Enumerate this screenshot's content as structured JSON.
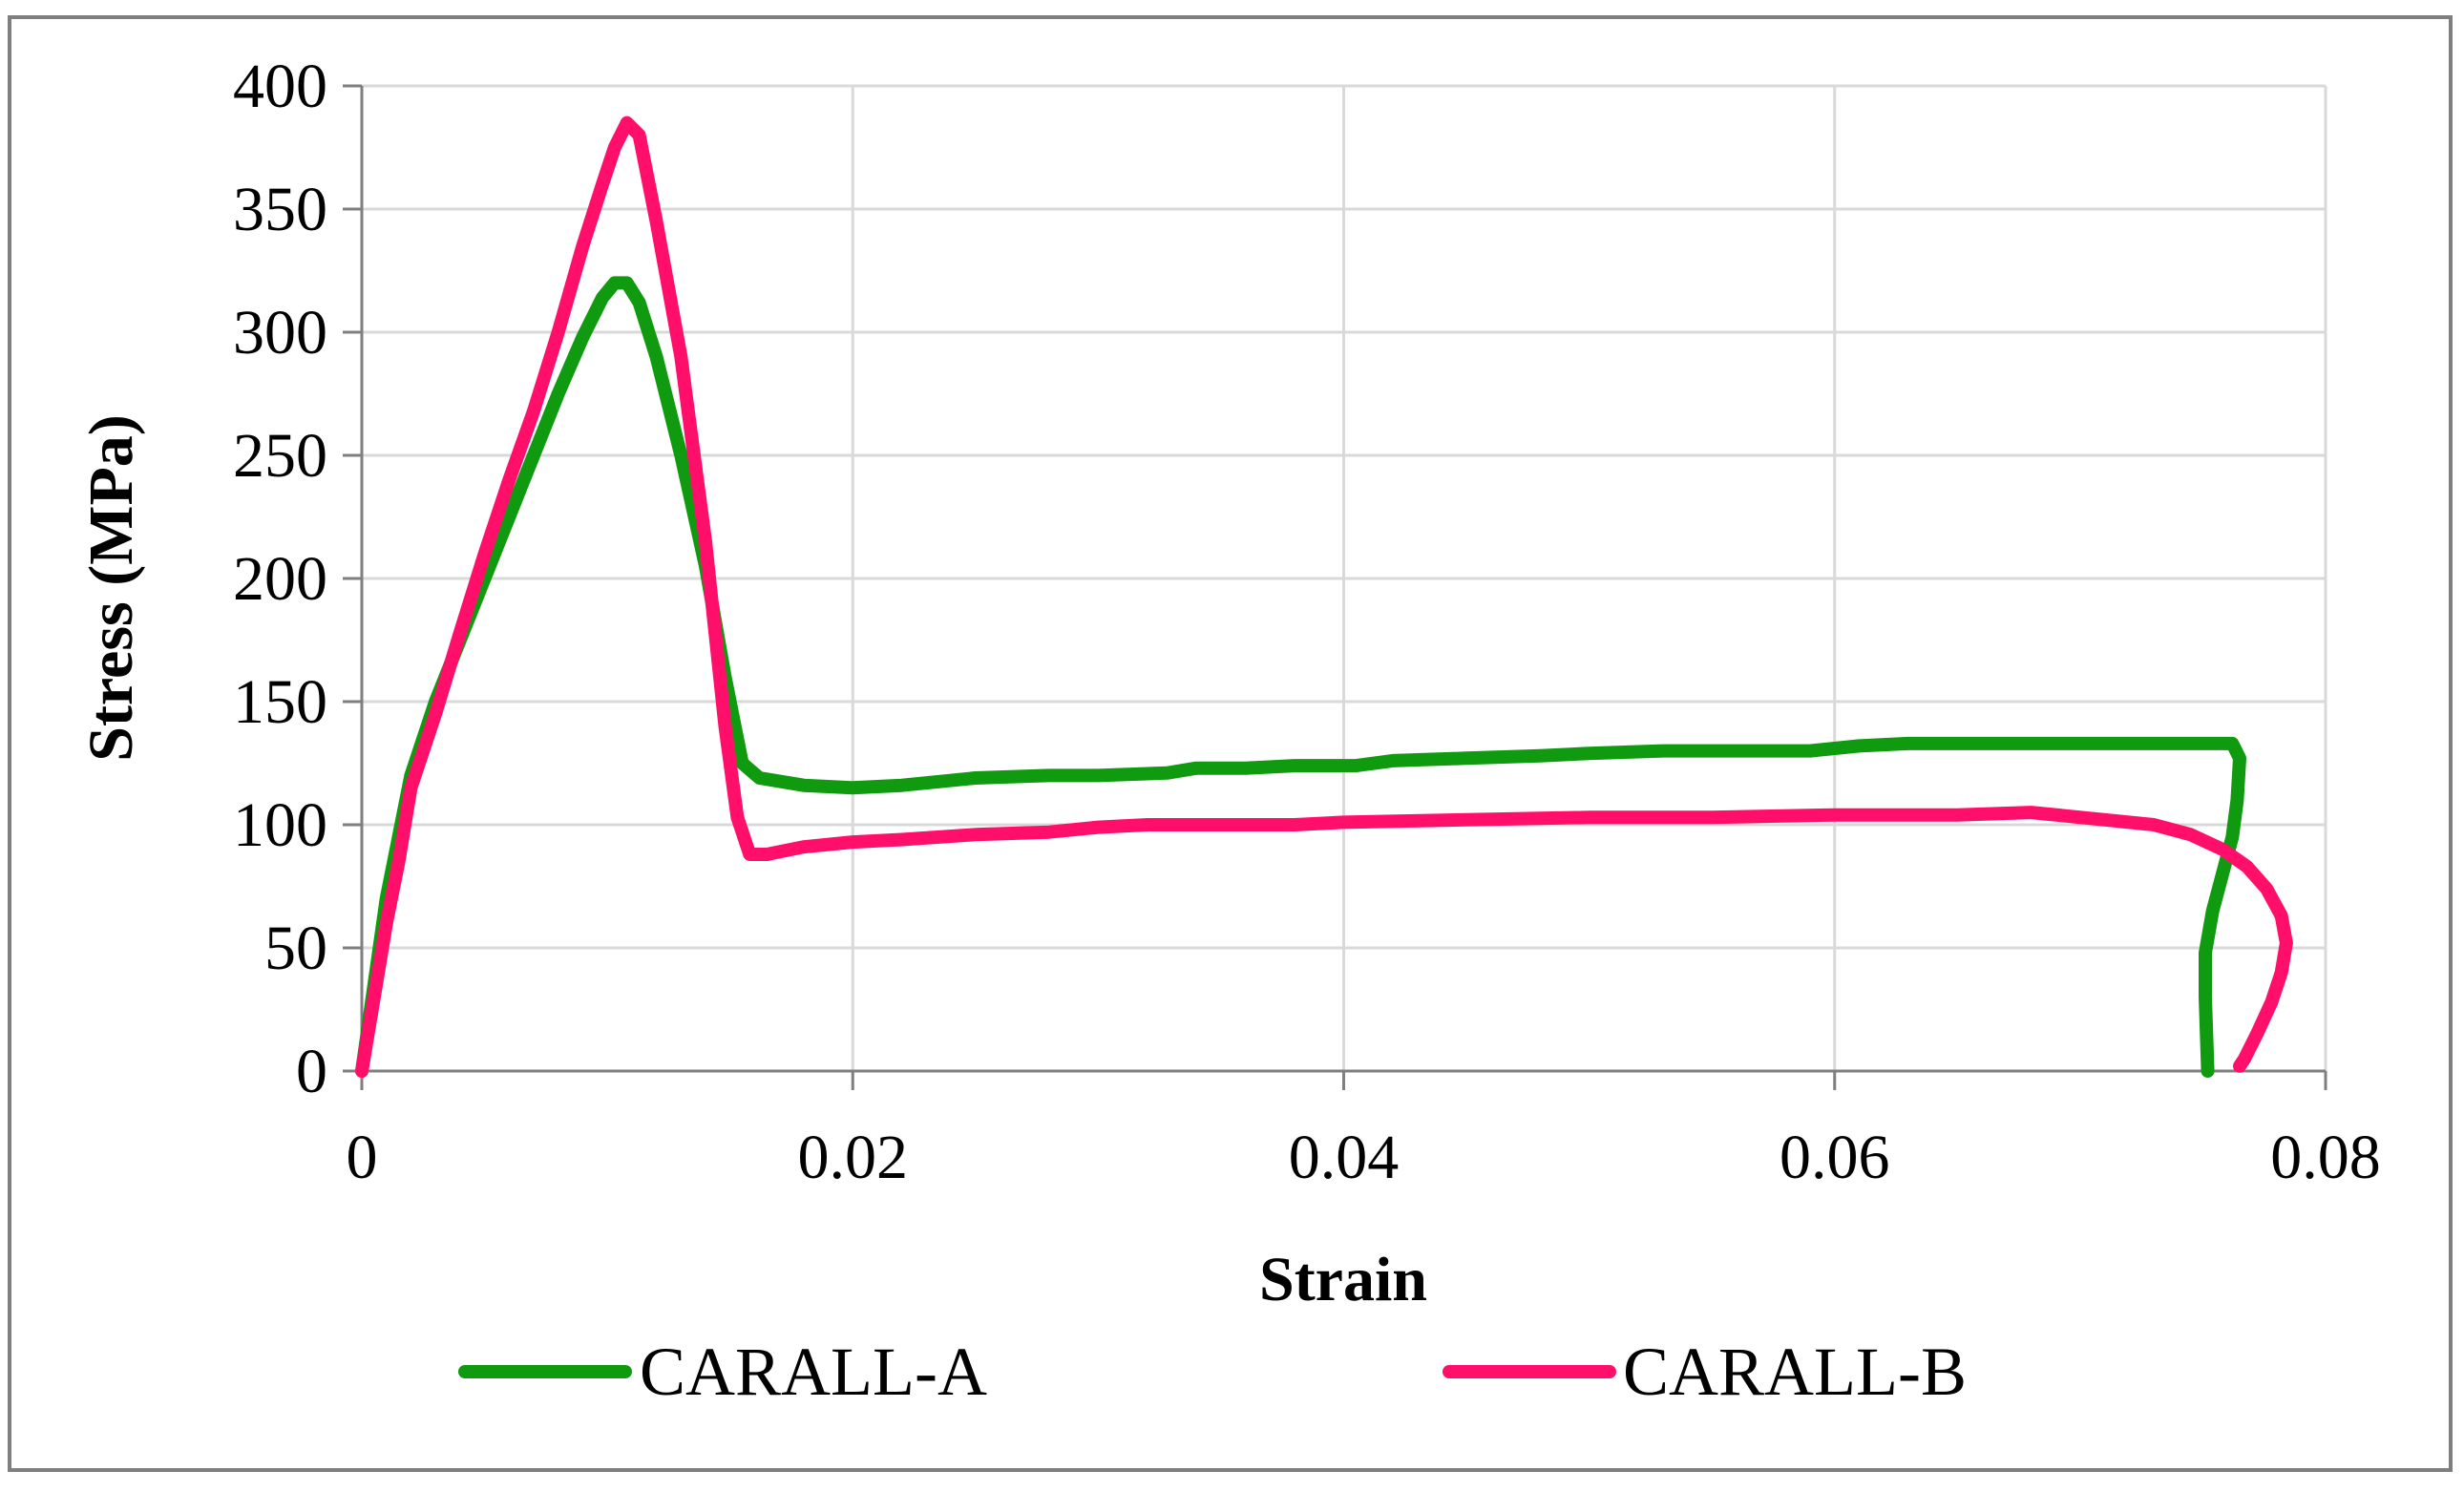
{
  "chart_data": {
    "type": "line",
    "title": "",
    "xlabel": "Strain",
    "ylabel": "Stress (MPa)",
    "xlim": [
      0,
      0.08
    ],
    "ylim": [
      0,
      400
    ],
    "x_ticks": [
      "0",
      "0.02",
      "0.04",
      "0.06",
      "0.08"
    ],
    "y_ticks": [
      "0",
      "50",
      "100",
      "150",
      "200",
      "250",
      "300",
      "350",
      "400"
    ],
    "grid": true,
    "legend_position": "bottom",
    "series": [
      {
        "name": "CARALL-A",
        "color": "#0f9a0f",
        "points": [
          [
            0,
            0
          ],
          [
            0.001,
            70
          ],
          [
            0.002,
            120
          ],
          [
            0.003,
            150
          ],
          [
            0.004,
            175
          ],
          [
            0.005,
            200
          ],
          [
            0.006,
            225
          ],
          [
            0.007,
            250
          ],
          [
            0.008,
            275
          ],
          [
            0.009,
            298
          ],
          [
            0.0098,
            314
          ],
          [
            0.0103,
            320
          ],
          [
            0.0108,
            320
          ],
          [
            0.0113,
            312
          ],
          [
            0.012,
            290
          ],
          [
            0.013,
            250
          ],
          [
            0.014,
            205
          ],
          [
            0.0148,
            160
          ],
          [
            0.0155,
            125
          ],
          [
            0.0162,
            119
          ],
          [
            0.018,
            116
          ],
          [
            0.02,
            115
          ],
          [
            0.022,
            116
          ],
          [
            0.025,
            119
          ],
          [
            0.028,
            120
          ],
          [
            0.03,
            120
          ],
          [
            0.0328,
            121
          ],
          [
            0.034,
            123
          ],
          [
            0.036,
            123
          ],
          [
            0.038,
            124
          ],
          [
            0.0405,
            124
          ],
          [
            0.042,
            126
          ],
          [
            0.045,
            127
          ],
          [
            0.048,
            128
          ],
          [
            0.05,
            129
          ],
          [
            0.053,
            130
          ],
          [
            0.056,
            130
          ],
          [
            0.059,
            130
          ],
          [
            0.061,
            132
          ],
          [
            0.063,
            133
          ],
          [
            0.066,
            133
          ],
          [
            0.069,
            133
          ],
          [
            0.072,
            133
          ],
          [
            0.075,
            133
          ],
          [
            0.0762,
            133
          ],
          [
            0.0765,
            127
          ],
          [
            0.0764,
            110
          ],
          [
            0.0762,
            95
          ],
          [
            0.0758,
            80
          ],
          [
            0.0754,
            65
          ],
          [
            0.0751,
            48
          ],
          [
            0.0751,
            30
          ],
          [
            0.0752,
            0
          ]
        ]
      },
      {
        "name": "CARALL-B",
        "color": "#ff0f6a",
        "points": [
          [
            0,
            0
          ],
          [
            0.0005,
            30
          ],
          [
            0.001,
            60
          ],
          [
            0.0015,
            85
          ],
          [
            0.002,
            115
          ],
          [
            0.003,
            145
          ],
          [
            0.004,
            178
          ],
          [
            0.005,
            210
          ],
          [
            0.006,
            240
          ],
          [
            0.007,
            268
          ],
          [
            0.008,
            300
          ],
          [
            0.009,
            335
          ],
          [
            0.0098,
            360
          ],
          [
            0.0103,
            375
          ],
          [
            0.0108,
            385
          ],
          [
            0.0113,
            380
          ],
          [
            0.012,
            345
          ],
          [
            0.013,
            290
          ],
          [
            0.014,
            215
          ],
          [
            0.0148,
            140
          ],
          [
            0.0153,
            103
          ],
          [
            0.0158,
            88
          ],
          [
            0.0165,
            88
          ],
          [
            0.018,
            91
          ],
          [
            0.02,
            93
          ],
          [
            0.022,
            94
          ],
          [
            0.025,
            96
          ],
          [
            0.028,
            97
          ],
          [
            0.03,
            99
          ],
          [
            0.032,
            100
          ],
          [
            0.036,
            100
          ],
          [
            0.038,
            100
          ],
          [
            0.04,
            101
          ],
          [
            0.045,
            102
          ],
          [
            0.05,
            103
          ],
          [
            0.055,
            103
          ],
          [
            0.06,
            104
          ],
          [
            0.065,
            104
          ],
          [
            0.068,
            105
          ],
          [
            0.071,
            102
          ],
          [
            0.073,
            100
          ],
          [
            0.0745,
            96
          ],
          [
            0.0758,
            90
          ],
          [
            0.0768,
            83
          ],
          [
            0.0776,
            74
          ],
          [
            0.0782,
            63
          ],
          [
            0.0784,
            52
          ],
          [
            0.0782,
            40
          ],
          [
            0.0778,
            28
          ],
          [
            0.0772,
            15
          ],
          [
            0.0767,
            5
          ],
          [
            0.0765,
            2
          ]
        ]
      }
    ]
  }
}
